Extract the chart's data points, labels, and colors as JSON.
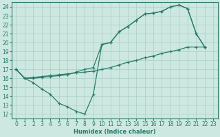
{
  "xlabel": "Humidex (Indice chaleur)",
  "background_color": "#cce8e0",
  "grid_color": "#aaccc4",
  "line_color": "#2a7a6a",
  "xlim": [
    -0.5,
    23.5
  ],
  "ylim": [
    11.5,
    24.5
  ],
  "line1_x": [
    0,
    1,
    2,
    3,
    4,
    5,
    6,
    7,
    8,
    9,
    10,
    11,
    12,
    13,
    14,
    15,
    16,
    17,
    18,
    19,
    20,
    21,
    22
  ],
  "line1_y": [
    17,
    16,
    15.5,
    14.8,
    14.2,
    13.2,
    12.8,
    12.3,
    12.0,
    14.2,
    19.8,
    20.0,
    21.2,
    21.8,
    22.5,
    23.2,
    23.3,
    23.5,
    24.0,
    24.2,
    23.8,
    21.0,
    19.5
  ],
  "line2_x": [
    0,
    1,
    2,
    3,
    4,
    5,
    6,
    7,
    8,
    9,
    10,
    11,
    12,
    13,
    14,
    15,
    16,
    17,
    18,
    19,
    20,
    21,
    22
  ],
  "line2_y": [
    17,
    16.0,
    16.0,
    16.1,
    16.2,
    16.3,
    16.4,
    16.7,
    17.0,
    17.2,
    19.8,
    20.0,
    21.2,
    21.8,
    22.5,
    23.2,
    23.3,
    23.5,
    24.0,
    24.2,
    23.8,
    21.0,
    19.5
  ],
  "line3_x": [
    0,
    1,
    2,
    3,
    4,
    5,
    6,
    7,
    8,
    9,
    10,
    11,
    12,
    13,
    14,
    15,
    16,
    17,
    18,
    19,
    20,
    21,
    22
  ],
  "line3_y": [
    17,
    16.0,
    16.1,
    16.2,
    16.3,
    16.4,
    16.5,
    16.6,
    16.7,
    16.8,
    17.0,
    17.2,
    17.5,
    17.8,
    18.0,
    18.3,
    18.5,
    18.8,
    19.0,
    19.2,
    19.5,
    19.5,
    19.5
  ]
}
